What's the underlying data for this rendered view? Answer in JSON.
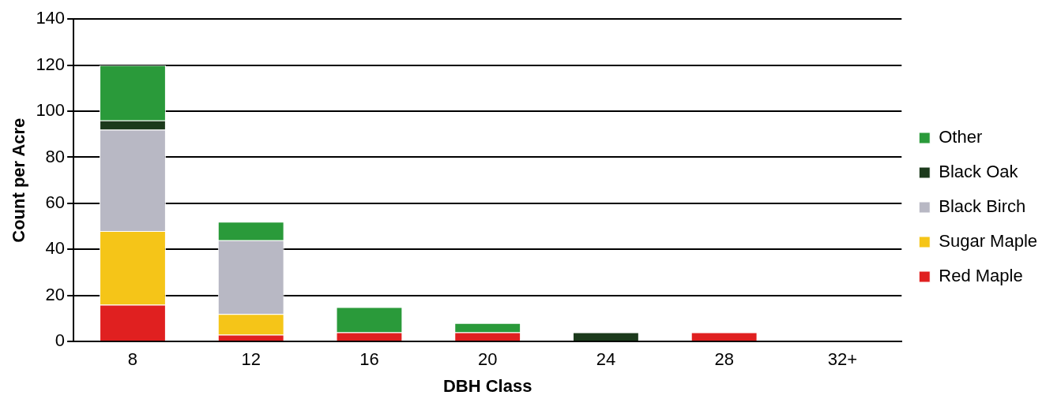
{
  "chart_data": {
    "type": "bar",
    "stacked": true,
    "xlabel": "DBH Class",
    "ylabel": "Count per Acre",
    "categories": [
      "8",
      "12",
      "16",
      "20",
      "24",
      "28",
      "32+"
    ],
    "series": [
      {
        "name": "Red Maple",
        "color": "#e02020",
        "values": [
          16,
          3,
          4,
          4,
          0,
          4,
          0
        ]
      },
      {
        "name": "Sugar Maple",
        "color": "#f5c518",
        "values": [
          32,
          9,
          0,
          0,
          0,
          0,
          0
        ]
      },
      {
        "name": "Black Birch",
        "color": "#b8b8c4",
        "values": [
          44,
          32,
          0,
          0,
          0,
          0,
          0
        ]
      },
      {
        "name": "Black Oak",
        "color": "#1c3a1c",
        "values": [
          4,
          0,
          0,
          0,
          4,
          0,
          0
        ]
      },
      {
        "name": "Other",
        "color": "#2a9a3a",
        "values": [
          24,
          8,
          11,
          4,
          0,
          0,
          0
        ]
      }
    ],
    "ylim": [
      0,
      140
    ],
    "yticks": [
      0,
      20,
      40,
      60,
      80,
      100,
      120,
      140
    ],
    "grid": "y",
    "legend": "right"
  }
}
